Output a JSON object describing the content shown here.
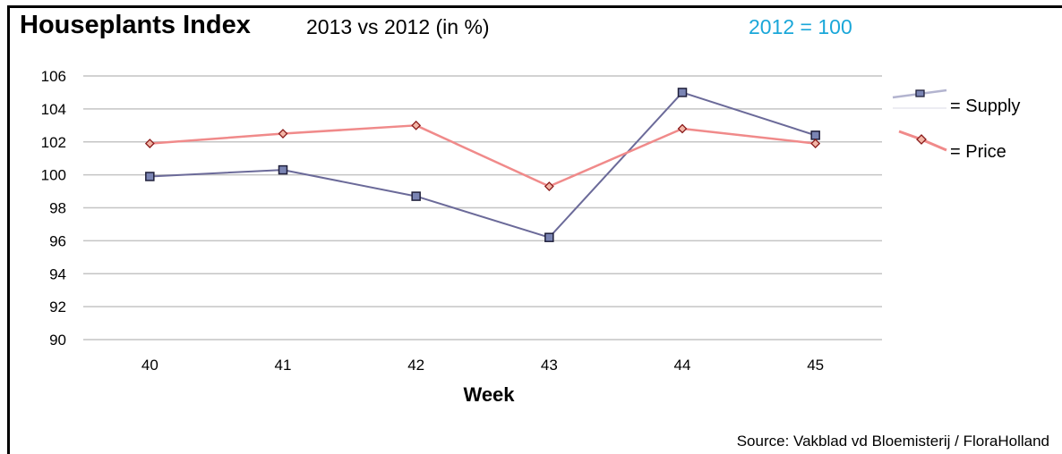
{
  "header": {
    "title": "Houseplants Index",
    "subtitle": "2013 vs 2012 (in %)",
    "baseline_note": "2012 = 100"
  },
  "footer": {
    "source": "Source: Vakblad vd Bloemisterij / FloraHolland"
  },
  "colors": {
    "supply_line": "#6b6a99",
    "supply_marker": "#7a84b3",
    "price_line": "#f08a8a",
    "price_marker": "#f2b5a6",
    "gridline": "#c4c4c4",
    "baseline_note": "#1aa7d9"
  },
  "chart_data": {
    "type": "line",
    "title": "Houseplants Index",
    "subtitle": "2013 vs 2012 (in %)",
    "xlabel": "Week",
    "ylabel": "",
    "categories": [
      "40",
      "41",
      "42",
      "43",
      "44",
      "45"
    ],
    "ylim": [
      90,
      106
    ],
    "yticks": [
      "90",
      "92",
      "94",
      "96",
      "98",
      "100",
      "102",
      "104",
      "106"
    ],
    "grid": true,
    "legend_position": "right",
    "series": [
      {
        "name": "= Supply",
        "values": [
          99.9,
          100.3,
          98.7,
          96.2,
          105.0,
          102.4
        ],
        "marker": "square"
      },
      {
        "name": "= Price",
        "values": [
          101.9,
          102.5,
          103.0,
          99.3,
          102.8,
          101.9
        ],
        "marker": "diamond"
      }
    ]
  }
}
